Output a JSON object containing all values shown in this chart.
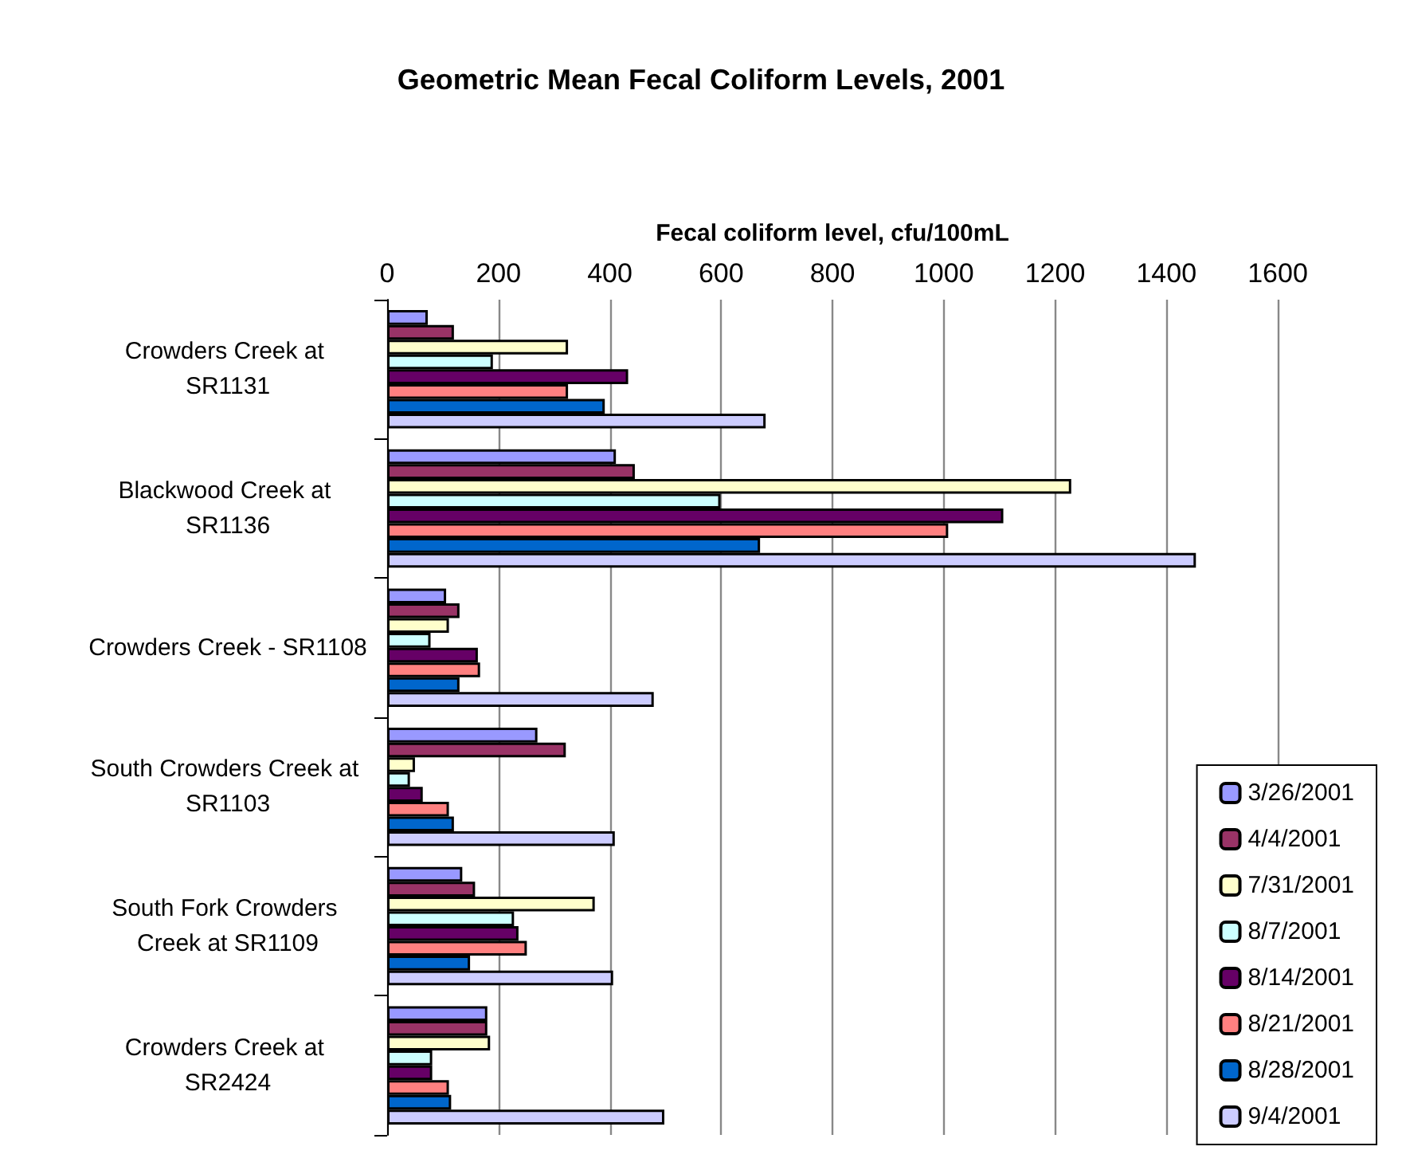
{
  "chart_data": {
    "type": "bar",
    "orientation": "horizontal",
    "title": "Geometric Mean Fecal Coliform Levels, 2001",
    "xlabel": "Fecal coliform level, cfu/100mL",
    "categories": [
      "Crowders Creek at SR1131",
      "Blackwood Creek at SR1136",
      "Crowders Creek - SR1108",
      "South Crowders Creek at SR1103",
      "South Fork Crowders Creek at SR1109",
      "Crowders Creek at SR2424"
    ],
    "series": [
      {
        "name": "3/26/2001",
        "color": "#9999ff",
        "values": [
          73,
          411,
          106,
          270,
          135,
          180
        ]
      },
      {
        "name": "4/4/2001",
        "color": "#993366",
        "values": [
          120,
          445,
          130,
          321,
          158,
          180
        ]
      },
      {
        "name": "7/31/2001",
        "color": "#ffffcc",
        "values": [
          325,
          1229,
          111,
          50,
          373,
          185
        ]
      },
      {
        "name": "8/7/2001",
        "color": "#ccffff",
        "values": [
          190,
          599,
          78,
          41,
          228,
          81
        ]
      },
      {
        "name": "8/14/2001",
        "color": "#660066",
        "values": [
          433,
          1107,
          163,
          64,
          236,
          81
        ]
      },
      {
        "name": "8/21/2001",
        "color": "#ff8080",
        "values": [
          325,
          1008,
          167,
          111,
          251,
          111
        ]
      },
      {
        "name": "8/28/2001",
        "color": "#0066cc",
        "values": [
          391,
          670,
          130,
          120,
          149,
          115
        ]
      },
      {
        "name": "9/4/2001",
        "color": "#ccccff",
        "values": [
          680,
          1453,
          479,
          409,
          406,
          498
        ]
      }
    ],
    "xlim": [
      0,
      1600
    ],
    "xticks": [
      0,
      200,
      400,
      600,
      800,
      1000,
      1200,
      1400,
      1600
    ],
    "grid": "x",
    "legend": "bottom right"
  }
}
